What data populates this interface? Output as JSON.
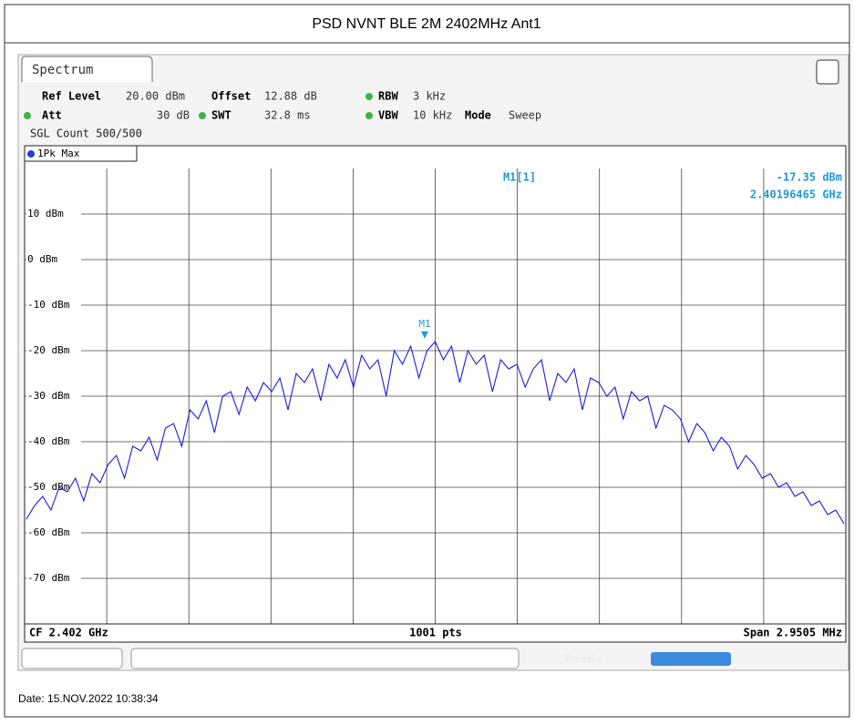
{
  "header": {
    "title": "PSD NVNT BLE 2M 2402MHz Ant1"
  },
  "analyzer": {
    "tab": "Spectrum",
    "settings": [
      [
        "Ref Level",
        "20.00 dBm"
      ],
      [
        "Offset",
        "12.88 dB"
      ],
      [
        "RBW",
        "3 kHz"
      ],
      [
        "Att",
        "30 dB"
      ],
      [
        "SWT",
        "32.8 ms"
      ],
      [
        "VBW",
        "10 kHz"
      ],
      [
        "Mode",
        "Sweep"
      ]
    ],
    "count": "SGL Count 500/500",
    "trace_label": "1Pk Max",
    "footer": {
      "left": "CF 2.402 GHz",
      "center": "1001 pts",
      "right": "Span 2.9505 MHz"
    },
    "status": "Ready"
  },
  "chart_data": {
    "type": "line",
    "color": "#1a1adc",
    "ylim": [
      -80,
      20
    ],
    "yticks": [
      {
        "value": 10,
        "label": "10 dBm"
      },
      {
        "value": 0,
        "label": "0 dBm"
      },
      {
        "value": -10,
        "label": "-10 dBm"
      },
      {
        "value": -20,
        "label": "-20 dBm"
      },
      {
        "value": -30,
        "label": "-30 dBm"
      },
      {
        "value": -40,
        "label": "-40 dBm"
      },
      {
        "value": -50,
        "label": "-50 dBm"
      },
      {
        "value": -60,
        "label": "-60 dBm"
      },
      {
        "value": -70,
        "label": "-70 dBm"
      }
    ],
    "grid": true,
    "values": [
      -57,
      -54,
      -52,
      -55,
      -50,
      -51,
      -48,
      -53,
      -47,
      -49,
      -45,
      -43,
      -48,
      -41,
      -42,
      -39,
      -44,
      -37,
      -36,
      -41,
      -33,
      -35,
      -31,
      -38,
      -30,
      -29,
      -34,
      -28,
      -31,
      -27,
      -29,
      -26,
      -33,
      -25,
      -27,
      -24,
      -31,
      -23,
      -26,
      -22,
      -28,
      -21,
      -24,
      -22,
      -30,
      -20,
      -23,
      -19,
      -26,
      -20,
      -18,
      -22,
      -19,
      -27,
      -20,
      -23,
      -21,
      -29,
      -22,
      -24,
      -23,
      -28,
      -24,
      -22,
      -31,
      -25,
      -27,
      -24,
      -33,
      -26,
      -27,
      -30,
      -28,
      -35,
      -29,
      -31,
      -30,
      -37,
      -32,
      -33,
      -35,
      -40,
      -36,
      -38,
      -42,
      -39,
      -41,
      -46,
      -43,
      -45,
      -48,
      -47,
      -50,
      -49,
      -52,
      -51,
      -54,
      -53,
      -56,
      -55,
      -58
    ],
    "marker": {
      "name": "M1",
      "readout": "M1[1]",
      "value": -17.35,
      "value_label": "-17.35 dBm",
      "freq_label": "2.40196465 GHz"
    }
  },
  "date": "Date: 15.NOV.2022  10:38:34"
}
